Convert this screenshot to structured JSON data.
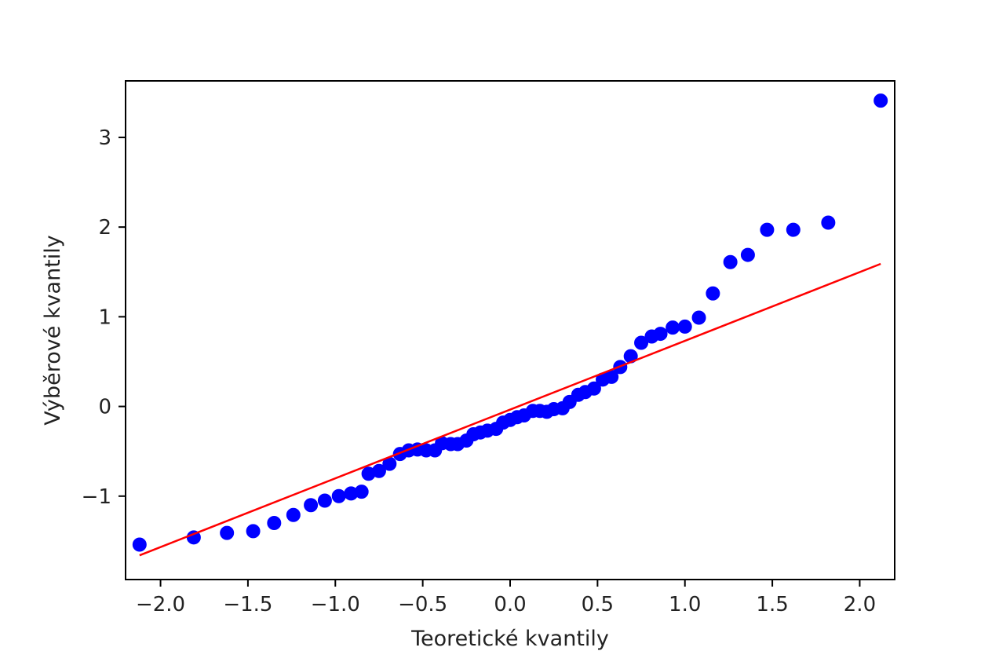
{
  "chart_data": {
    "type": "scatter",
    "xlabel": "Teoretické kvantily",
    "ylabel": "Výběrové kvantily",
    "xlim": [
      -2.2,
      2.2
    ],
    "ylim": [
      -1.93,
      3.63
    ],
    "grid": false,
    "legend": "none",
    "x_ticks": [
      -2.0,
      -1.5,
      -1.0,
      -0.5,
      0.0,
      0.5,
      1.0,
      1.5,
      2.0
    ],
    "x_tick_labels": [
      "−2.0",
      "−1.5",
      "−1.0",
      "−0.5",
      "0.0",
      "0.5",
      "1.0",
      "1.5",
      "2.0"
    ],
    "y_ticks": [
      -1,
      0,
      1,
      2,
      3
    ],
    "y_tick_labels": [
      "−1",
      "0",
      "1",
      "2",
      "3"
    ],
    "series": [
      {
        "type": "scatter",
        "color": "#0000ff",
        "points": [
          [
            -2.12,
            -1.54
          ],
          [
            -1.81,
            -1.46
          ],
          [
            -1.62,
            -1.41
          ],
          [
            -1.47,
            -1.39
          ],
          [
            -1.35,
            -1.3
          ],
          [
            -1.24,
            -1.21
          ],
          [
            -1.14,
            -1.1
          ],
          [
            -1.06,
            -1.05
          ],
          [
            -0.98,
            -1.0
          ],
          [
            -0.91,
            -0.97
          ],
          [
            -0.85,
            -0.95
          ],
          [
            -0.81,
            -0.75
          ],
          [
            -0.75,
            -0.72
          ],
          [
            -0.69,
            -0.64
          ],
          [
            -0.63,
            -0.53
          ],
          [
            -0.58,
            -0.49
          ],
          [
            -0.53,
            -0.48
          ],
          [
            -0.48,
            -0.49
          ],
          [
            -0.43,
            -0.49
          ],
          [
            -0.39,
            -0.41
          ],
          [
            -0.34,
            -0.42
          ],
          [
            -0.3,
            -0.42
          ],
          [
            -0.25,
            -0.38
          ],
          [
            -0.21,
            -0.31
          ],
          [
            -0.17,
            -0.29
          ],
          [
            -0.13,
            -0.27
          ],
          [
            -0.08,
            -0.25
          ],
          [
            -0.04,
            -0.18
          ],
          [
            0.0,
            -0.15
          ],
          [
            0.04,
            -0.12
          ],
          [
            0.08,
            -0.1
          ],
          [
            0.13,
            -0.05
          ],
          [
            0.17,
            -0.05
          ],
          [
            0.21,
            -0.06
          ],
          [
            0.25,
            -0.03
          ],
          [
            0.3,
            -0.02
          ],
          [
            0.34,
            0.05
          ],
          [
            0.39,
            0.13
          ],
          [
            0.43,
            0.16
          ],
          [
            0.48,
            0.2
          ],
          [
            0.53,
            0.3
          ],
          [
            0.58,
            0.33
          ],
          [
            0.63,
            0.44
          ],
          [
            0.69,
            0.56
          ],
          [
            0.75,
            0.71
          ],
          [
            0.81,
            0.78
          ],
          [
            0.86,
            0.81
          ],
          [
            0.93,
            0.88
          ],
          [
            1.0,
            0.89
          ],
          [
            1.08,
            0.99
          ],
          [
            1.16,
            1.26
          ],
          [
            1.26,
            1.61
          ],
          [
            1.36,
            1.69
          ],
          [
            1.47,
            1.97
          ],
          [
            1.62,
            1.97
          ],
          [
            1.82,
            2.05
          ],
          [
            2.12,
            3.41
          ]
        ]
      },
      {
        "type": "line",
        "color": "#ff0000",
        "points": [
          [
            -2.12,
            -1.66
          ],
          [
            2.12,
            1.59
          ]
        ]
      }
    ]
  }
}
